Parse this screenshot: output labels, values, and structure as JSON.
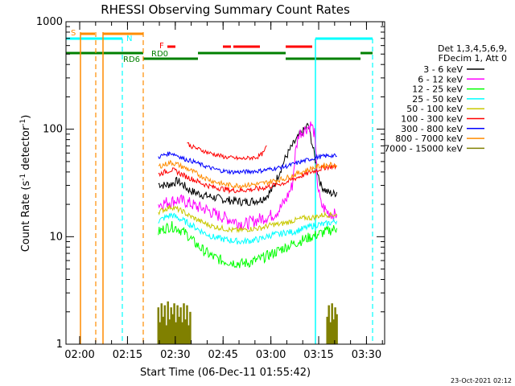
{
  "chart_data": {
    "type": "line",
    "title": "RHESSI Observing Summary Count Rates",
    "xlabel": "Start Time (06-Dec-11 01:55:42)",
    "ylabel": "Count Rate (s",
    "ylabel_sup": "-1",
    "ylabel_rest": " detector",
    "ylabel_sup2": "-1",
    "ylabel_end": ")",
    "x_unit": "minutes after 01:55:42",
    "xlim": [
      0,
      100
    ],
    "ylim": [
      1,
      1000
    ],
    "y_scale": "log",
    "y_ticks": [
      {
        "value": 1,
        "label": "1"
      },
      {
        "value": 10,
        "label": "10"
      },
      {
        "value": 100,
        "label": "100"
      },
      {
        "value": 1000,
        "label": "1000"
      }
    ],
    "x_ticks": [
      {
        "value": 4.3,
        "label": "02:00"
      },
      {
        "value": 19.3,
        "label": "02:15"
      },
      {
        "value": 34.3,
        "label": "02:30"
      },
      {
        "value": 49.3,
        "label": "02:45"
      },
      {
        "value": 64.3,
        "label": "03:00"
      },
      {
        "value": 79.3,
        "label": "03:15"
      },
      {
        "value": 94.3,
        "label": "03:30"
      }
    ],
    "legend_header": [
      "Det 1,3,4,5,6,9,",
      "FDecim 1, Att 0"
    ],
    "series": [
      {
        "name": "3 - 6 keV",
        "color": "#000000",
        "x": [
          29,
          31,
          33,
          35,
          37,
          38,
          40,
          44,
          50,
          56,
          61,
          62,
          63,
          65,
          67,
          69,
          71,
          73,
          75,
          76,
          77,
          79,
          80,
          82,
          84,
          85
        ],
        "values": [
          31,
          30,
          31,
          33,
          30,
          28,
          26,
          24,
          22,
          21,
          22,
          23,
          24,
          28,
          40,
          55,
          70,
          85,
          100,
          110,
          80,
          40,
          30,
          26,
          25,
          26
        ]
      },
      {
        "name": "6 - 12 keV",
        "color": "#ff00ff",
        "x": [
          29,
          32,
          35,
          38,
          41,
          44,
          47,
          50,
          53,
          56,
          59,
          62,
          65,
          67,
          69,
          71,
          72,
          73,
          74,
          75,
          76,
          77,
          78,
          79,
          80,
          82,
          84,
          85
        ],
        "values": [
          20,
          21,
          22,
          21,
          19,
          18,
          16,
          15,
          14,
          13,
          14,
          15,
          16,
          18,
          22,
          30,
          60,
          90,
          95,
          100,
          105,
          110,
          90,
          30,
          20,
          17,
          16,
          16
        ]
      },
      {
        "name": "12 - 25 keV",
        "color": "#00ff00",
        "x": [
          29,
          31,
          33,
          35,
          37,
          38,
          40,
          43,
          46,
          49,
          52,
          55,
          58,
          61,
          63,
          65,
          67,
          69,
          71,
          73,
          75,
          77,
          79,
          81,
          83,
          85
        ],
        "values": [
          11,
          12,
          12.5,
          12,
          11,
          10.5,
          9,
          7.5,
          6.5,
          6,
          5.8,
          5.6,
          5.8,
          6.2,
          6.6,
          7,
          7.5,
          8,
          8.5,
          9,
          9.5,
          10,
          10.5,
          11,
          11.5,
          12
        ]
      },
      {
        "name": "25 - 50 keV",
        "color": "#00ffff",
        "x": [
          29,
          31,
          33,
          35,
          37,
          38,
          40,
          43,
          46,
          49,
          52,
          55,
          58,
          61,
          63,
          65,
          67,
          69,
          71,
          73,
          75,
          77,
          79,
          81,
          83,
          85
        ],
        "values": [
          14,
          15,
          16,
          15,
          14,
          13.5,
          12.5,
          11,
          10,
          9.5,
          9.2,
          9,
          9.2,
          9.5,
          10,
          10.5,
          10.5,
          11,
          11,
          11.5,
          12,
          12.5,
          13,
          13,
          13.5,
          14
        ]
      },
      {
        "name": "50 - 100 keV",
        "color": "#c8c800",
        "x": [
          29,
          31,
          33,
          35,
          37,
          38,
          40,
          43,
          46,
          49,
          52,
          55,
          58,
          61,
          63,
          65,
          67,
          69,
          71,
          73,
          75,
          77,
          79,
          81,
          83,
          85
        ],
        "values": [
          17,
          18,
          19,
          18,
          17,
          16,
          15,
          13.5,
          12.5,
          12,
          11.5,
          11.5,
          11.8,
          12,
          12.5,
          13,
          13,
          13.5,
          14,
          14.5,
          15,
          15,
          15.5,
          16,
          16,
          16
        ]
      },
      {
        "name": "100 - 300 keV",
        "color": "#ff0000",
        "x": [
          29,
          31,
          33,
          35,
          37,
          38,
          40,
          43,
          46,
          49,
          52,
          55,
          58,
          61,
          63,
          65,
          67,
          69,
          71,
          73,
          75,
          77,
          79,
          81,
          83,
          85
        ],
        "values": [
          38,
          40,
          42,
          40,
          37,
          36,
          34,
          31,
          29,
          28,
          27,
          27,
          27.5,
          28,
          29,
          30,
          31,
          32,
          34,
          36,
          38,
          40,
          42,
          44,
          45,
          45
        ]
      },
      {
        "name": "300 - 800 keV",
        "color": "#0000ff",
        "x": [
          29,
          31,
          33,
          35,
          37,
          38,
          40,
          43,
          46,
          49,
          52,
          55,
          58,
          61,
          63,
          65,
          67,
          69,
          71,
          73,
          75,
          77,
          79,
          81,
          83,
          85
        ],
        "values": [
          55,
          58,
          60,
          57,
          53,
          52,
          50,
          46,
          43,
          41,
          40,
          40,
          40.5,
          41,
          42,
          43,
          44,
          45,
          47,
          49,
          51,
          53,
          55,
          56,
          57,
          56
        ]
      },
      {
        "name": "800 - 7000 keV",
        "color": "#ff8c00",
        "x": [
          29,
          31,
          33,
          35,
          37,
          38,
          40,
          43,
          46,
          49,
          52,
          55,
          58,
          61,
          63,
          65,
          67,
          69,
          71,
          73,
          75,
          77,
          79,
          81,
          83,
          85
        ],
        "values": [
          45,
          47,
          49,
          47,
          44,
          43,
          40,
          36,
          33,
          31,
          30,
          30,
          30.5,
          31,
          32,
          33,
          34,
          35,
          37,
          39,
          41,
          43,
          45,
          46,
          47,
          46
        ]
      },
      {
        "name": "7000 - 15000 keV",
        "color": "#808000",
        "x": [
          29,
          29.5,
          30,
          30.5,
          31,
          31.5,
          32,
          32.5,
          33,
          33.5,
          34,
          34.5,
          35,
          35.5,
          36,
          36.5,
          37,
          37.5,
          38,
          38.5,
          39,
          82,
          82.5,
          83,
          83.5,
          84,
          84.5,
          85
        ],
        "values": [
          2.2,
          1.6,
          2.4,
          1.8,
          2.3,
          1.5,
          2.5,
          1.7,
          2.2,
          1.9,
          2.4,
          1.6,
          2.3,
          1.8,
          2.2,
          1.6,
          2.4,
          1.7,
          2.3,
          1.5,
          2.0,
          1.8,
          2.3,
          1.6,
          2.4,
          1.7,
          2.2,
          1.9
        ]
      }
    ],
    "flare_spike": {
      "name": "100 - 300 keV",
      "color": "#ff0000",
      "x": [
        38,
        39,
        40,
        45,
        50,
        55,
        60,
        62,
        63
      ],
      "values": [
        75,
        70,
        68,
        60,
        55,
        53,
        55,
        60,
        70
      ]
    },
    "annotations": [
      {
        "text": "S",
        "color": "#ff8c00"
      },
      {
        "text": "N",
        "color": "#00ffff"
      },
      {
        "text": "F",
        "color": "#ff0000"
      },
      {
        "text": "RD0",
        "color": "#008000"
      },
      {
        "text": "RD6",
        "color": "#008000"
      }
    ],
    "footer_date": "23-Oct-2021 02:12"
  }
}
